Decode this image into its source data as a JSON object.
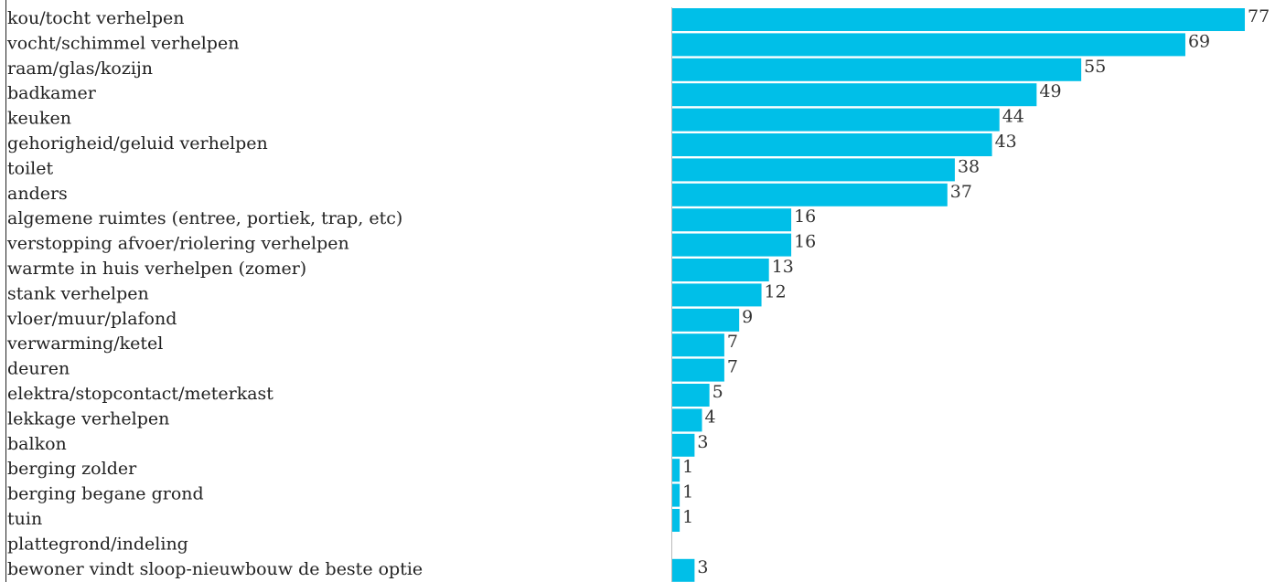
{
  "chart_data": {
    "type": "bar",
    "orientation": "horizontal",
    "title": "",
    "xlabel": "",
    "ylabel": "",
    "categories": [
      "kou/tocht verhelpen",
      "vocht/schimmel verhelpen",
      "raam/glas/kozijn",
      "badkamer",
      "keuken",
      "gehorigheid/geluid verhelpen",
      "toilet",
      "anders",
      "algemene ruimtes (entree, portiek, trap, etc)",
      "verstopping afvoer/riolering verhelpen",
      "warmte in huis verhelpen (zomer)",
      "stank verhelpen",
      "vloer/muur/plafond",
      "verwarming/ketel",
      "deuren",
      "elektra/stopcontact/meterkast",
      "lekkage verhelpen",
      "balkon",
      "berging zolder",
      "berging begane grond",
      "tuin",
      "plattegrond/indeling",
      "bewoner vindt sloop-nieuwbouw de beste optie"
    ],
    "values": [
      77,
      69,
      55,
      49,
      44,
      43,
      38,
      37,
      16,
      16,
      13,
      12,
      9,
      7,
      7,
      5,
      4,
      3,
      1,
      1,
      1,
      0,
      3
    ],
    "value_labels": [
      "77",
      "69",
      "55",
      "49",
      "44",
      "43",
      "38",
      "37",
      "16",
      "16",
      "13",
      "12",
      "9",
      "7",
      "7",
      "5",
      "4",
      "3",
      "1",
      "1",
      "1",
      "",
      "3"
    ],
    "bar_color": "#00bfe8",
    "grid": false,
    "legend": "none"
  }
}
